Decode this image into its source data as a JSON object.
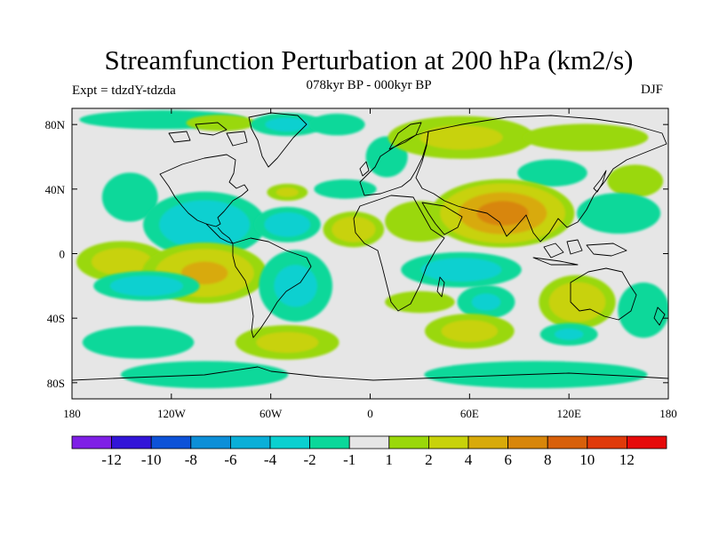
{
  "title": "Streamfunction Perturbation at 200 hPa (km2/s)",
  "subtitle": "078kyr BP - 000kyr BP",
  "experiment": "Expt = tdzdY-tdzda",
  "season": "DJF",
  "map": {
    "projection": "cylindrical equidistant",
    "lon_range": [
      -180,
      180
    ],
    "lat_range": [
      -90,
      90
    ],
    "background_color": "#e6e6e6",
    "coastline_color": "#000000",
    "y_ticks": [
      {
        "lat": 80,
        "label": "80N"
      },
      {
        "lat": 40,
        "label": "40N"
      },
      {
        "lat": 0,
        "label": "0"
      },
      {
        "lat": -40,
        "label": "40S"
      },
      {
        "lat": -80,
        "label": "80S"
      }
    ],
    "x_ticks": [
      {
        "lon": -180,
        "label": "180"
      },
      {
        "lon": -120,
        "label": "120W"
      },
      {
        "lon": -60,
        "label": "60W"
      },
      {
        "lon": 0,
        "label": "0"
      },
      {
        "lon": 60,
        "label": "60E"
      },
      {
        "lon": 120,
        "label": "120E"
      },
      {
        "lon": 180,
        "label": "180"
      }
    ],
    "anomalies": [
      {
        "lon": -125,
        "lat": 83,
        "rx": 60,
        "ry": 7,
        "value": -1.6
      },
      {
        "lon": -90,
        "lat": 81,
        "rx": 25,
        "ry": 6,
        "value": 1.6
      },
      {
        "lon": -50,
        "lat": 80,
        "rx": 25,
        "ry": 8,
        "value": -2.5
      },
      {
        "lon": -20,
        "lat": 80,
        "rx": 20,
        "ry": 8,
        "value": -1.6
      },
      {
        "lon": 10,
        "lat": 60,
        "rx": 15,
        "ry": 15,
        "value": -1.6
      },
      {
        "lon": 55,
        "lat": 72,
        "rx": 50,
        "ry": 15,
        "value": 2.3
      },
      {
        "lon": 130,
        "lat": 72,
        "rx": 45,
        "ry": 10,
        "value": 1.6
      },
      {
        "lon": 110,
        "lat": 50,
        "rx": 25,
        "ry": 10,
        "value": -1.6
      },
      {
        "lon": 160,
        "lat": 45,
        "rx": 20,
        "ry": 12,
        "value": 1.6
      },
      {
        "lon": -145,
        "lat": 35,
        "rx": 20,
        "ry": 18,
        "value": -1.6
      },
      {
        "lon": -50,
        "lat": 38,
        "rx": 14,
        "ry": 6,
        "value": 2.2
      },
      {
        "lon": -15,
        "lat": 40,
        "rx": 22,
        "ry": 7,
        "value": -1.8
      },
      {
        "lon": -100,
        "lat": 18,
        "rx": 40,
        "ry": 22,
        "value": -3.8
      },
      {
        "lon": -50,
        "lat": 18,
        "rx": 22,
        "ry": 12,
        "value": -3.2
      },
      {
        "lon": -10,
        "lat": 15,
        "rx": 20,
        "ry": 12,
        "value": 3.5
      },
      {
        "lon": 30,
        "lat": 20,
        "rx": 25,
        "ry": 15,
        "value": 1.6
      },
      {
        "lon": 80,
        "lat": 25,
        "rx": 45,
        "ry": 22,
        "value": 7.8
      },
      {
        "lon": 150,
        "lat": 25,
        "rx": 30,
        "ry": 15,
        "value": -1.6
      },
      {
        "lon": -150,
        "lat": -5,
        "rx": 30,
        "ry": 14,
        "value": 3.0
      },
      {
        "lon": -100,
        "lat": -12,
        "rx": 40,
        "ry": 20,
        "value": 4.8
      },
      {
        "lon": -135,
        "lat": -20,
        "rx": 35,
        "ry": 10,
        "value": -3.2
      },
      {
        "lon": -45,
        "lat": -20,
        "rx": 25,
        "ry": 25,
        "value": -2.4
      },
      {
        "lon": 55,
        "lat": -10,
        "rx": 40,
        "ry": 12,
        "value": -3.0
      },
      {
        "lon": 30,
        "lat": -30,
        "rx": 25,
        "ry": 8,
        "value": 1.6
      },
      {
        "lon": 70,
        "lat": -30,
        "rx": 20,
        "ry": 12,
        "value": -2.0
      },
      {
        "lon": 125,
        "lat": -30,
        "rx": 25,
        "ry": 18,
        "value": 3.8
      },
      {
        "lon": 165,
        "lat": -35,
        "rx": 18,
        "ry": 20,
        "value": -1.8
      },
      {
        "lon": -140,
        "lat": -55,
        "rx": 40,
        "ry": 12,
        "value": -1.6
      },
      {
        "lon": -50,
        "lat": -55,
        "rx": 35,
        "ry": 12,
        "value": 2.5
      },
      {
        "lon": 60,
        "lat": -48,
        "rx": 30,
        "ry": 12,
        "value": 2.7
      },
      {
        "lon": 120,
        "lat": -50,
        "rx": 20,
        "ry": 8,
        "value": -2.0
      },
      {
        "lon": -100,
        "lat": -75,
        "rx": 60,
        "ry": 10,
        "value": -1.6
      },
      {
        "lon": 100,
        "lat": -75,
        "rx": 80,
        "ry": 10,
        "value": -1.6
      }
    ]
  },
  "colorbar": {
    "colors": [
      "#7f1fe6",
      "#3215d8",
      "#0d52d8",
      "#0d8fd8",
      "#0aafd8",
      "#0ad0d0",
      "#0ad89a",
      "#e6e6e6",
      "#9ad80a",
      "#c8d20a",
      "#d8aa0a",
      "#d8860a",
      "#d8600a",
      "#e03a0a",
      "#e60a0a"
    ],
    "labels": [
      "-12",
      "-10",
      "-8",
      "-6",
      "-4",
      "-2",
      "-1",
      "1",
      "2",
      "4",
      "6",
      "8",
      "10",
      "12"
    ]
  }
}
